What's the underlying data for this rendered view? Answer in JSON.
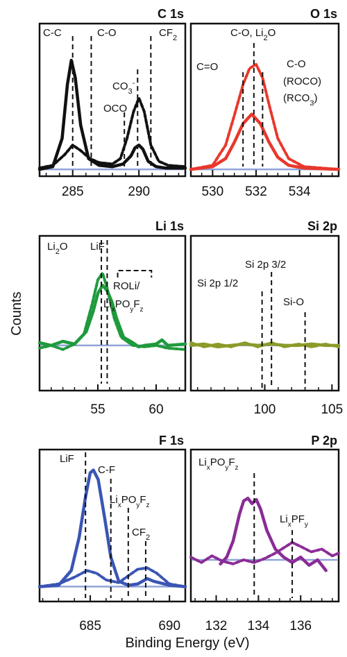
{
  "figure": {
    "ylabel": "Counts",
    "xlabel": "Binding Energy (eV)"
  },
  "chart_data": [
    {
      "type": "line",
      "title": "C 1s",
      "xlim": [
        282.5,
        293.5
      ],
      "ylim": [
        0,
        1
      ],
      "xticks": [
        285,
        290
      ],
      "xtick_labels": [
        "285",
        "290"
      ],
      "baseline": {
        "y": 0.02,
        "color": "#8fa3d8"
      },
      "series": [
        {
          "style": "solid",
          "color": "#111111",
          "x": [
            282.5,
            283.5,
            284.2,
            284.6,
            284.9,
            285.2,
            285.6,
            286.2,
            287,
            288,
            288.8,
            289.4,
            289.7,
            290,
            290.3,
            290.7,
            291.3,
            292,
            293.5
          ],
          "y": [
            0.02,
            0.04,
            0.25,
            0.65,
            0.83,
            0.7,
            0.35,
            0.1,
            0.05,
            0.04,
            0.06,
            0.12,
            0.18,
            0.2,
            0.17,
            0.08,
            0.04,
            0.03,
            0.03
          ]
        },
        {
          "style": "dashed",
          "color": "#111111",
          "x": [
            282.5,
            283.5,
            284.4,
            285.0,
            285.6,
            286.3,
            287,
            288,
            288.6,
            289.1,
            289.6,
            290.0,
            290.4,
            290.9,
            291.5,
            292.2,
            293.5
          ],
          "y": [
            0.03,
            0.05,
            0.13,
            0.2,
            0.16,
            0.1,
            0.07,
            0.06,
            0.1,
            0.25,
            0.45,
            0.55,
            0.45,
            0.2,
            0.08,
            0.05,
            0.04
          ]
        }
      ],
      "markers": [
        {
          "x": 285.0,
          "label": "C-C"
        },
        {
          "x": 286.4,
          "label": "C-O"
        },
        {
          "x": 288.9,
          "label": "OCO"
        },
        {
          "x": 289.9,
          "label": "CO3-"
        },
        {
          "x": 290.9,
          "label": "CF2"
        }
      ]
    },
    {
      "type": "line",
      "title": "O 1s",
      "xlim": [
        529.0,
        535.8
      ],
      "ylim": [
        0,
        1
      ],
      "xticks": [
        530,
        532,
        534
      ],
      "xtick_labels": [
        "530",
        "532",
        "534"
      ],
      "baseline": {
        "y": 0.02,
        "color": "#8fa3d8"
      },
      "series": [
        {
          "style": "solid",
          "color": "#e8382c",
          "x": [
            529,
            530,
            530.6,
            531.0,
            531.4,
            531.8,
            532.2,
            532.6,
            533.0,
            533.5,
            534.2,
            535.8
          ],
          "y": [
            0.02,
            0.04,
            0.1,
            0.22,
            0.36,
            0.43,
            0.36,
            0.22,
            0.11,
            0.05,
            0.03,
            0.02
          ]
        },
        {
          "style": "dashed",
          "color": "#e8382c",
          "x": [
            529,
            530,
            530.6,
            531.0,
            531.4,
            531.7,
            532.0,
            532.3,
            532.6,
            533.0,
            533.5,
            534.2,
            535.8
          ],
          "y": [
            0.02,
            0.05,
            0.2,
            0.42,
            0.65,
            0.77,
            0.8,
            0.7,
            0.5,
            0.25,
            0.1,
            0.04,
            0.02
          ]
        }
      ],
      "markers": [
        {
          "x": 531.4,
          "label": "C=O"
        },
        {
          "x": 531.9,
          "label": "C-O, Li2O"
        },
        {
          "x": 532.3,
          "label": "C-O (ROCO) (RCO3)"
        }
      ]
    },
    {
      "type": "line",
      "title": "Li 1s",
      "xlim": [
        50.0,
        62.5
      ],
      "ylim": [
        0,
        1
      ],
      "xticks": [
        55,
        60
      ],
      "xtick_labels": [
        "55",
        "60"
      ],
      "baseline": {
        "y": 0.3,
        "color": "#8fa3d8"
      },
      "series": [
        {
          "style": "solid",
          "color": "#1f9a3c",
          "x": [
            50,
            51,
            52,
            53,
            54,
            54.6,
            55.0,
            55.4,
            55.8,
            56.2,
            56.6,
            57.2,
            58,
            58.5,
            59,
            60,
            60.5,
            61,
            62.5
          ],
          "y": [
            0.32,
            0.3,
            0.33,
            0.31,
            0.4,
            0.55,
            0.68,
            0.74,
            0.7,
            0.62,
            0.5,
            0.36,
            0.32,
            0.29,
            0.3,
            0.31,
            0.34,
            0.3,
            0.31
          ]
        },
        {
          "style": "dashed",
          "color": "#1f9a3c",
          "x": [
            50,
            51,
            52,
            53,
            53.8,
            54.5,
            55.0,
            55.4,
            55.8,
            56.4,
            57,
            58,
            59,
            60,
            61,
            62.5
          ],
          "y": [
            0.28,
            0.3,
            0.27,
            0.31,
            0.38,
            0.6,
            0.78,
            0.83,
            0.72,
            0.5,
            0.36,
            0.3,
            0.29,
            0.3,
            0.28,
            0.27
          ]
        }
      ],
      "markers": [
        {
          "x": 55.3,
          "label": "Li2O"
        },
        {
          "x": 55.8,
          "label": "LiF"
        }
      ],
      "bracket": {
        "x1": 56.7,
        "x2": 59.6,
        "label": "ROLi/ LixPOyFz"
      }
    },
    {
      "type": "line",
      "title": "Si 2p",
      "xlim": [
        94.5,
        105.5
      ],
      "ylim": [
        0,
        1
      ],
      "xticks": [
        100,
        105
      ],
      "xtick_labels": [
        "100",
        "105"
      ],
      "baseline": {
        "y": 0.3,
        "color": "#8fa3d8"
      },
      "series": [
        {
          "style": "solid",
          "color": "#8c9a2a",
          "x": [
            94.5,
            95.5,
            96.5,
            97.5,
            98.5,
            99.5,
            100.5,
            101.5,
            102.5,
            103.5,
            104.5,
            105.5
          ],
          "y": [
            0.3,
            0.31,
            0.29,
            0.3,
            0.31,
            0.3,
            0.31,
            0.3,
            0.3,
            0.31,
            0.3,
            0.3
          ]
        },
        {
          "style": "dashed",
          "color": "#8c9a2a",
          "x": [
            94.5,
            95.5,
            96.5,
            97.5,
            98.5,
            99.5,
            100.5,
            101.5,
            102.5,
            103.5,
            104.5,
            105.5
          ],
          "y": [
            0.32,
            0.29,
            0.31,
            0.29,
            0.32,
            0.29,
            0.32,
            0.29,
            0.31,
            0.29,
            0.31,
            0.29
          ]
        }
      ],
      "markers": [
        {
          "x": 99.8,
          "label": "Si 2p 1/2"
        },
        {
          "x": 100.5,
          "label": "Si 2p 3/2"
        },
        {
          "x": 103.0,
          "label": "Si-O"
        }
      ]
    },
    {
      "type": "line",
      "title": "F 1s",
      "xlim": [
        681.8,
        691.0
      ],
      "ylim": [
        0,
        1
      ],
      "xticks": [
        685,
        690
      ],
      "xtick_labels": [
        "685",
        "690"
      ],
      "baseline": {
        "y": 0.08,
        "color": "#8fa3d8"
      },
      "series": [
        {
          "style": "solid",
          "color": "#3a55b4",
          "x": [
            681.8,
            683,
            683.8,
            684.3,
            684.7,
            685.0,
            685.2,
            685.5,
            685.9,
            686.3,
            686.8,
            687.4,
            688,
            688.6,
            689,
            690,
            691
          ],
          "y": [
            0.08,
            0.09,
            0.2,
            0.45,
            0.75,
            0.93,
            0.95,
            0.88,
            0.6,
            0.3,
            0.12,
            0.09,
            0.1,
            0.14,
            0.12,
            0.09,
            0.08
          ]
        },
        {
          "style": "dashed",
          "color": "#3a55b4",
          "x": [
            681.8,
            683,
            684,
            684.8,
            685.4,
            686,
            686.8,
            687.4,
            688.0,
            688.6,
            689.2,
            690,
            691
          ],
          "y": [
            0.08,
            0.1,
            0.15,
            0.2,
            0.18,
            0.13,
            0.11,
            0.16,
            0.21,
            0.22,
            0.18,
            0.1,
            0.08
          ]
        }
      ],
      "markers": [
        {
          "x": 684.7,
          "label": "LiF"
        },
        {
          "x": 686.3,
          "label": "C-F"
        },
        {
          "x": 687.4,
          "label": "LixPOyFz"
        },
        {
          "x": 688.5,
          "label": "CF2"
        }
      ]
    },
    {
      "type": "line",
      "title": "P 2p",
      "xlim": [
        130.8,
        137.8
      ],
      "ylim": [
        0,
        1
      ],
      "xticks": [
        132,
        134,
        136
      ],
      "xtick_labels": [
        "132",
        "134",
        "136"
      ],
      "baseline": {
        "y": 0.28,
        "color": "#8fa3d8"
      },
      "series": [
        {
          "style": "solid",
          "color": "#8b2c96",
          "x": [
            132.2,
            132.5,
            132.8,
            133.1,
            133.3,
            133.5,
            133.7,
            133.9,
            134.1,
            134.4,
            134.8,
            135.2,
            135.6,
            136.0,
            136.4,
            136.8,
            137.2
          ],
          "y": [
            0.25,
            0.3,
            0.42,
            0.62,
            0.72,
            0.74,
            0.7,
            0.73,
            0.66,
            0.5,
            0.36,
            0.3,
            0.26,
            0.3,
            0.24,
            0.28,
            0.2
          ]
        },
        {
          "style": "dashed",
          "color": "#8b2c96",
          "x": [
            130.8,
            131.3,
            131.8,
            132.3,
            132.8,
            133.3,
            133.8,
            134.3,
            134.8,
            135.3,
            135.6,
            136.0,
            136.5,
            137.0,
            137.5,
            137.8
          ],
          "y": [
            0.3,
            0.26,
            0.31,
            0.27,
            0.25,
            0.28,
            0.26,
            0.29,
            0.33,
            0.38,
            0.41,
            0.38,
            0.34,
            0.36,
            0.31,
            0.33
          ]
        }
      ],
      "markers": [
        {
          "x": 133.8,
          "label": "LixPOyFz"
        },
        {
          "x": 135.6,
          "label": "LixPFy"
        }
      ]
    }
  ]
}
